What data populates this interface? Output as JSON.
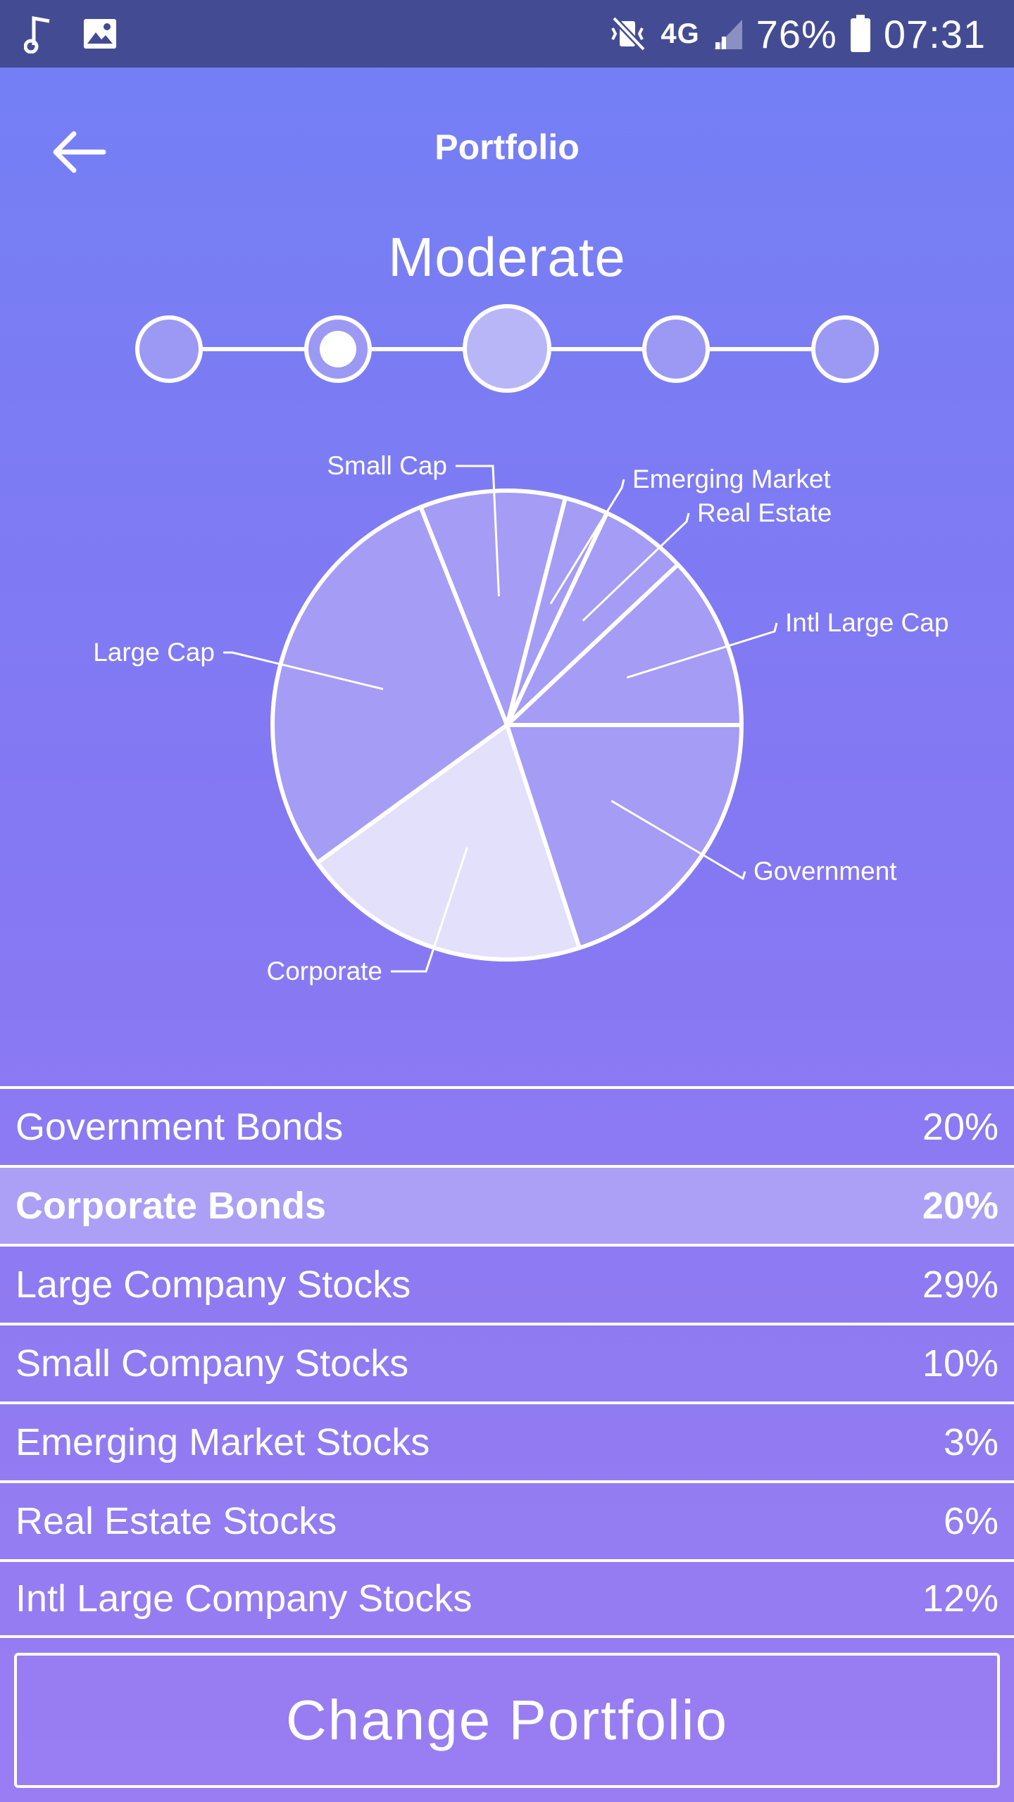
{
  "status_bar": {
    "icons_left": [
      "music-note-icon",
      "image-icon"
    ],
    "icons_right": [
      "mute-vibrate-icon",
      "4g-lte-icon",
      "signal-icon",
      "battery-icon"
    ],
    "network": "4G",
    "battery": "76%",
    "time": "07:31"
  },
  "header": {
    "title": "Portfolio",
    "back_icon": "arrow-left-icon"
  },
  "risk": {
    "label": "Moderate",
    "levels": 5,
    "selected_index": 1
  },
  "chart_data": {
    "type": "pie",
    "title": "",
    "slices": [
      {
        "label": "Intl Large Cap",
        "value": 12
      },
      {
        "label": "Real Estate",
        "value": 6
      },
      {
        "label": "Emerging Market",
        "value": 3
      },
      {
        "label": "Small Cap",
        "value": 10
      },
      {
        "label": "Large Cap",
        "value": 29
      },
      {
        "label": "Corporate",
        "value": 20
      },
      {
        "label": "Government",
        "value": 20
      }
    ]
  },
  "allocations": [
    {
      "name": "Government Bonds",
      "percent": "20%"
    },
    {
      "name": "Corporate Bonds",
      "percent": "20%"
    },
    {
      "name": "Large Company Stocks",
      "percent": "29%"
    },
    {
      "name": "Small Company Stocks",
      "percent": "10%"
    },
    {
      "name": "Emerging Market Stocks",
      "percent": "3%"
    },
    {
      "name": "Real Estate Stocks",
      "percent": "6%"
    },
    {
      "name": "Intl Large Company Stocks",
      "percent": "12%"
    }
  ],
  "actions": {
    "change_portfolio": "Change Portfolio"
  },
  "colors": {
    "status_bar": "#434c93",
    "slice_fill": "#a49cf5",
    "corporate_fill": "#e3e0fb",
    "stroke": "#ffffff"
  }
}
